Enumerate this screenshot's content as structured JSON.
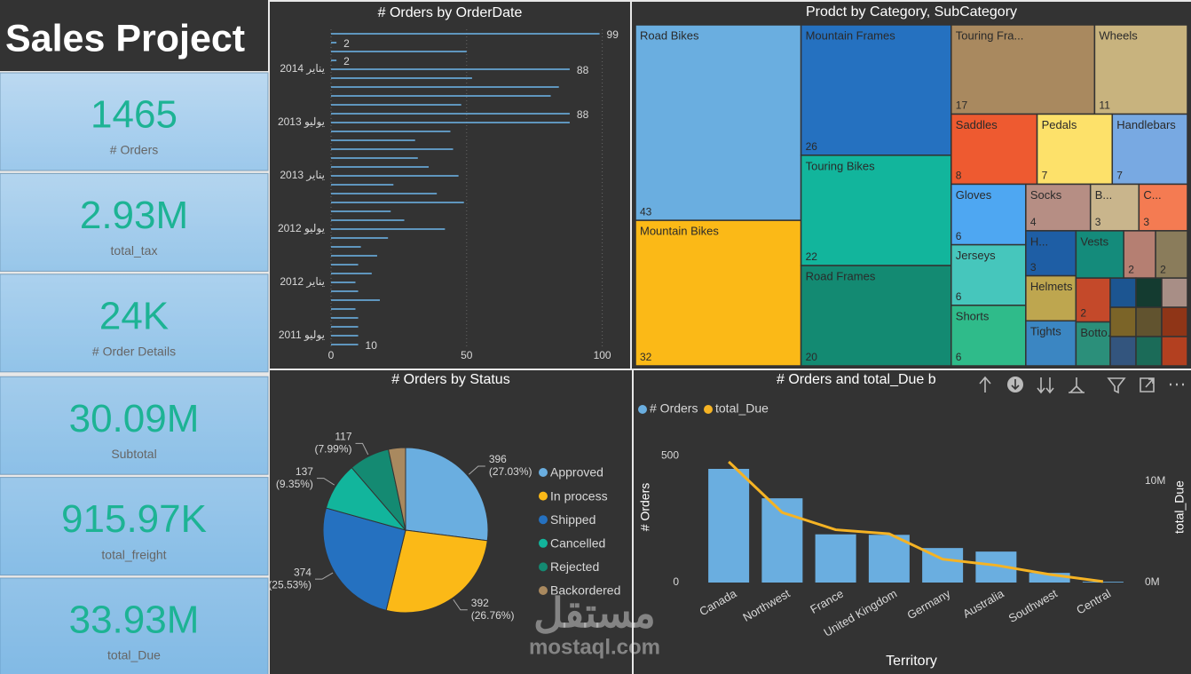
{
  "title": "Sales Project",
  "kpis": [
    {
      "value": "1465",
      "label": "# Orders"
    },
    {
      "value": "2.93M",
      "label": "total_tax"
    },
    {
      "value": "24K",
      "label": "# Order Details"
    },
    {
      "value": "30.09M",
      "label": "Subtotal"
    },
    {
      "value": "915.97K",
      "label": "total_freight"
    },
    {
      "value": "33.93M",
      "label": "total_Due"
    }
  ],
  "chart_data": [
    {
      "type": "hbar",
      "title": "# Orders by OrderDate",
      "categories": [
        null,
        null,
        null,
        null,
        "يناير 2014",
        null,
        null,
        null,
        null,
        null,
        "يوليو 2013",
        null,
        null,
        null,
        null,
        null,
        "يناير 2013",
        null,
        null,
        null,
        null,
        null,
        "يوليو 2012",
        null,
        null,
        null,
        null,
        null,
        "يناير 2012",
        null,
        null,
        null,
        null,
        null,
        "يوليو 2011",
        null
      ],
      "values": [
        99,
        2,
        50,
        2,
        88,
        52,
        84,
        81,
        48,
        88,
        88,
        44,
        31,
        45,
        32,
        36,
        47,
        23,
        39,
        49,
        22,
        27,
        42,
        21,
        11,
        17,
        10,
        15,
        9,
        10,
        18,
        9,
        10,
        10,
        10,
        10
      ],
      "value_labels": [
        "99",
        "2",
        null,
        "2",
        "88",
        null,
        null,
        null,
        null,
        "88",
        null,
        null,
        null,
        null,
        null,
        null,
        null,
        null,
        null,
        null,
        null,
        null,
        null,
        null,
        null,
        null,
        null,
        null,
        null,
        null,
        null,
        null,
        null,
        null,
        null,
        "10"
      ],
      "color": "#6aaee0",
      "xlim": [
        0,
        107
      ],
      "xticks": [
        0,
        50,
        100
      ],
      "grid": true
    },
    {
      "type": "treemap",
      "title": "Prodct by Category, SubCategory",
      "names": [
        "Road Bikes",
        "Mountain Bikes",
        "Mountain Frames",
        "Touring Bikes",
        "Road Frames",
        "Touring Fra...",
        "Wheels",
        "Saddles",
        "Pedals",
        "Handlebars",
        "Gloves",
        "Jerseys",
        "Shorts",
        "Socks",
        "B...",
        "C...",
        "H...",
        "Helmets",
        "Tights",
        "Vests",
        null,
        null,
        null,
        "Botto...",
        null,
        null,
        null,
        null,
        null,
        null,
        null,
        null,
        null
      ],
      "values": [
        43,
        32,
        26,
        22,
        20,
        17,
        11,
        8,
        7,
        7,
        6,
        6,
        6,
        4,
        3,
        3,
        3,
        3,
        3,
        3,
        2,
        2,
        2,
        2,
        1,
        1,
        1,
        1,
        1,
        1,
        1,
        1,
        1
      ],
      "value_labels": [
        "43",
        "32",
        "26",
        "22",
        "20",
        "17",
        "11",
        "8",
        "7",
        "7",
        "6",
        "6",
        "6",
        "4",
        "3",
        "3",
        "3",
        null,
        null,
        null,
        "2",
        "2",
        "2",
        null,
        null,
        null,
        null,
        null,
        null,
        null,
        null,
        null,
        null
      ],
      "colors": [
        "#6aaee0",
        "#fbb917",
        "#2571c0",
        "#12b59c",
        "#138a72",
        "#a9895f",
        "#c8b37e",
        "#ee5a30",
        "#fde16a",
        "#78a9e2",
        "#4ea7f2",
        "#46c6bc",
        "#2fbb8a",
        "#b68e84",
        "#c9b58c",
        "#f47b52",
        "#1e5ea5",
        "#bea64f",
        "#3b86c2",
        "#148b7b",
        "#b57f72",
        "#8a7c5b",
        "#c4492a",
        "#2b8f7a",
        "#1c5591",
        "#143b30",
        "#a88e86",
        "#7b6428",
        "#33557e",
        "#61532f",
        "#8f3517",
        "#1b6b58",
        "#b34020"
      ]
    },
    {
      "type": "pie",
      "title": "# Orders by Status",
      "categories": [
        "Approved",
        "In process",
        "Shipped",
        "Cancelled",
        "Rejected",
        "Backordered"
      ],
      "values": [
        396,
        392,
        374,
        137,
        117,
        49
      ],
      "percent_labels": [
        "(27.03%)",
        "(26.76%)",
        "(25.53%)",
        "(9.35%)",
        "(7.99%)",
        null
      ],
      "colors": [
        "#6aaee0",
        "#fbb917",
        "#2571c0",
        "#12b59c",
        "#148a72",
        "#a9895f"
      ],
      "legend": "right"
    },
    {
      "type": "combo",
      "title": "# Orders and total_Due b",
      "categories": [
        "Canada",
        "Northwest",
        "France",
        "United Kingdom",
        "Germany",
        "Australia",
        "Southwest",
        "Central"
      ],
      "x_label": "Territory",
      "y_label": "# Orders",
      "y2_label": "total_Due",
      "series": [
        {
          "name": "# Orders",
          "type": "bar",
          "color": "#6aaee0",
          "values": [
            448,
            332,
            190,
            188,
            136,
            122,
            38,
            3
          ]
        },
        {
          "name": "total_Due",
          "type": "line",
          "axis": "y2",
          "color": "#f5b324",
          "values": [
            11900000,
            6900000,
            5200000,
            4800000,
            2300000,
            1700000,
            800000,
            100000
          ]
        }
      ],
      "ylim": [
        0,
        560
      ],
      "yticks": [
        0,
        500
      ],
      "y2lim": [
        0,
        14000000
      ],
      "y2ticks": [
        {
          "value": 0,
          "label": "0M"
        },
        {
          "value": 10000000,
          "label": "10M"
        }
      ],
      "legend": "top-left"
    }
  ],
  "watermark": {
    "arabic": "مستقل",
    "latin": "mostaql.com"
  }
}
